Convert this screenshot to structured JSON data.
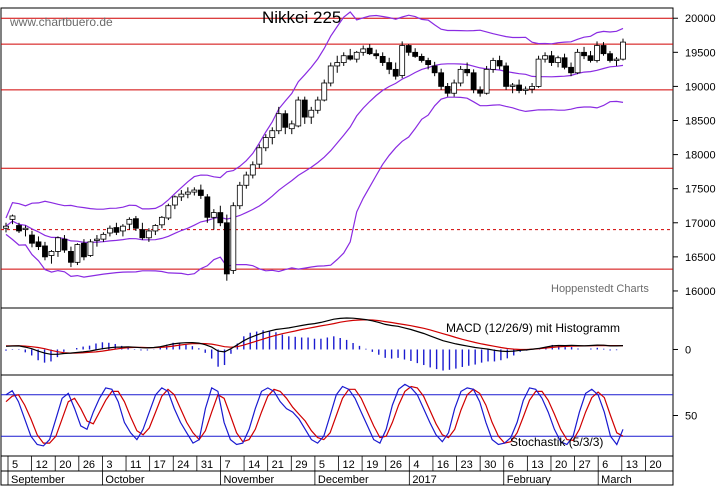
{
  "watermark": "www.chartbuero.de",
  "credit": "Hoppenstedt Charts",
  "colors": {
    "price_line": "#d00000",
    "band": "#8a2be2",
    "macd_hist": "#1a1ad0",
    "signal": "#000000",
    "stoch_k": "#1a1ad0",
    "stoch_d": "#d00000"
  },
  "chart_data": [
    {
      "type": "candlestick",
      "title": "Nikkei 225",
      "y_ticks": [
        16000,
        16500,
        17000,
        17500,
        18000,
        18500,
        19000,
        19500,
        20000
      ],
      "ylim": [
        15750,
        20150
      ],
      "horizontal_lines": [
        20000,
        19620,
        18950,
        17800,
        16900,
        16320
      ],
      "x_ticks": [
        "5",
        "12",
        "20",
        "26",
        "3",
        "11",
        "17",
        "24",
        "31",
        "7",
        "14",
        "21",
        "29",
        "5",
        "12",
        "19",
        "26",
        "4",
        "16",
        "23",
        "30",
        "6",
        "13",
        "20",
        "27",
        "6",
        "13",
        "20"
      ],
      "x_months": [
        "September",
        "October",
        "November",
        "December",
        "2017",
        "February",
        "March"
      ],
      "ohlc": [
        [
          16920,
          17000,
          16860,
          16950
        ],
        [
          17050,
          17120,
          16980,
          17100
        ],
        [
          16960,
          17000,
          16850,
          16880
        ],
        [
          16900,
          16960,
          16800,
          16920
        ],
        [
          16820,
          16880,
          16640,
          16700
        ],
        [
          16720,
          16800,
          16600,
          16650
        ],
        [
          16660,
          16720,
          16450,
          16500
        ],
        [
          16520,
          16600,
          16400,
          16580
        ],
        [
          16580,
          16800,
          16500,
          16780
        ],
        [
          16760,
          16820,
          16560,
          16600
        ],
        [
          16580,
          16650,
          16350,
          16420
        ],
        [
          16420,
          16700,
          16380,
          16680
        ],
        [
          16700,
          16760,
          16450,
          16500
        ],
        [
          16520,
          16760,
          16500,
          16720
        ],
        [
          16740,
          16820,
          16650,
          16760
        ],
        [
          16760,
          16860,
          16720,
          16830
        ],
        [
          16850,
          16960,
          16800,
          16920
        ],
        [
          16930,
          17000,
          16820,
          16860
        ],
        [
          16880,
          16980,
          16800,
          16950
        ],
        [
          16980,
          17080,
          16900,
          17050
        ],
        [
          17060,
          17100,
          16880,
          16920
        ],
        [
          16900,
          17000,
          16750,
          16780
        ],
        [
          16780,
          16920,
          16720,
          16880
        ],
        [
          16880,
          16980,
          16820,
          16960
        ],
        [
          16970,
          17100,
          16920,
          17080
        ],
        [
          17070,
          17280,
          17040,
          17250
        ],
        [
          17260,
          17400,
          17200,
          17380
        ],
        [
          17380,
          17480,
          17320,
          17420
        ],
        [
          17420,
          17520,
          17360,
          17450
        ],
        [
          17450,
          17520,
          17400,
          17480
        ],
        [
          17480,
          17560,
          17350,
          17400
        ],
        [
          17380,
          17420,
          17000,
          17080
        ],
        [
          17080,
          17200,
          16900,
          17150
        ],
        [
          17150,
          17250,
          16950,
          17000
        ],
        [
          17000,
          17120,
          16150,
          16250
        ],
        [
          16300,
          17300,
          16250,
          17250
        ],
        [
          17250,
          17600,
          17200,
          17550
        ],
        [
          17550,
          17750,
          17500,
          17700
        ],
        [
          17700,
          17900,
          17650,
          17850
        ],
        [
          17860,
          18150,
          17800,
          18100
        ],
        [
          18100,
          18300,
          18050,
          18250
        ],
        [
          18250,
          18400,
          18150,
          18350
        ],
        [
          18350,
          18700,
          18300,
          18600
        ],
        [
          18600,
          18650,
          18300,
          18400
        ],
        [
          18380,
          18500,
          18300,
          18450
        ],
        [
          18420,
          18850,
          18400,
          18800
        ],
        [
          18800,
          18850,
          18450,
          18550
        ],
        [
          18550,
          18700,
          18450,
          18650
        ],
        [
          18650,
          18850,
          18600,
          18800
        ],
        [
          18800,
          19100,
          18780,
          19050
        ],
        [
          19050,
          19350,
          19000,
          19300
        ],
        [
          19300,
          19450,
          19200,
          19350
        ],
        [
          19350,
          19500,
          19300,
          19450
        ],
        [
          19450,
          19550,
          19380,
          19400
        ],
        [
          19400,
          19520,
          19350,
          19500
        ],
        [
          19500,
          19600,
          19450,
          19550
        ],
        [
          19560,
          19620,
          19460,
          19480
        ],
        [
          19480,
          19540,
          19400,
          19450
        ],
        [
          19440,
          19500,
          19300,
          19350
        ],
        [
          19350,
          19420,
          19180,
          19250
        ],
        [
          19250,
          19350,
          19100,
          19150
        ],
        [
          19160,
          19660,
          19120,
          19600
        ],
        [
          19600,
          19620,
          19450,
          19500
        ],
        [
          19500,
          19560,
          19420,
          19440
        ],
        [
          19440,
          19480,
          19350,
          19380
        ],
        [
          19380,
          19420,
          19250,
          19320
        ],
        [
          19300,
          19360,
          19150,
          19200
        ],
        [
          19200,
          19260,
          18950,
          19000
        ],
        [
          19000,
          19050,
          18850,
          18900
        ],
        [
          18900,
          19100,
          18850,
          19050
        ],
        [
          19050,
          19300,
          19000,
          19250
        ],
        [
          19250,
          19350,
          19150,
          19200
        ],
        [
          19200,
          19250,
          18900,
          18950
        ],
        [
          18950,
          19000,
          18850,
          18900
        ],
        [
          18900,
          19300,
          18880,
          19250
        ],
        [
          19250,
          19420,
          19200,
          19380
        ],
        [
          19380,
          19450,
          19250,
          19300
        ],
        [
          19300,
          19350,
          18950,
          19000
        ],
        [
          19000,
          19050,
          18900,
          19020
        ],
        [
          19020,
          19100,
          18900,
          18940
        ],
        [
          18940,
          19000,
          18880,
          18960
        ],
        [
          18960,
          19050,
          18900,
          19000
        ],
        [
          19000,
          19450,
          18980,
          19400
        ],
        [
          19400,
          19500,
          19350,
          19450
        ],
        [
          19450,
          19520,
          19300,
          19350
        ],
        [
          19350,
          19450,
          19280,
          19420
        ],
        [
          19420,
          19480,
          19250,
          19280
        ],
        [
          19280,
          19350,
          19150,
          19200
        ],
        [
          19200,
          19550,
          19180,
          19500
        ],
        [
          19500,
          19580,
          19400,
          19450
        ],
        [
          19450,
          19520,
          19350,
          19380
        ],
        [
          19380,
          19660,
          19350,
          19600
        ],
        [
          19600,
          19650,
          19450,
          19480
        ],
        [
          19480,
          19520,
          19350,
          19380
        ],
        [
          19380,
          19430,
          19300,
          19400
        ],
        [
          19400,
          19700,
          19380,
          19650
        ]
      ]
    },
    {
      "type": "line",
      "title": "MACD (12/26/9) mit Histogramm",
      "y_ticks": [
        0
      ],
      "ylim": [
        -320,
        520
      ],
      "series": [
        {
          "values": [
            40,
            44,
            45,
            30,
            10,
            -20,
            -45,
            -60,
            -60,
            -50,
            -45,
            -38,
            -30,
            -20,
            -5,
            10,
            20,
            28,
            30,
            32,
            28,
            22,
            20,
            25,
            35,
            52,
            70,
            80,
            85,
            86,
            80,
            60,
            30,
            -20,
            -30,
            10,
            60,
            110,
            150,
            180,
            210,
            230,
            250,
            260,
            270,
            285,
            300,
            315,
            325,
            340,
            360,
            380,
            390,
            395,
            392,
            385,
            375,
            360,
            340,
            315,
            300,
            290,
            270,
            250,
            225,
            200,
            170,
            140,
            110,
            90,
            70,
            55,
            40,
            25,
            15,
            5,
            -10,
            -20,
            -25,
            -20,
            -10,
            -5,
            5,
            15,
            30,
            45,
            50,
            48,
            52,
            48,
            45,
            50,
            55,
            53,
            45,
            45,
            48
          ]
        },
        {
          "values": [
            45,
            46,
            47,
            42,
            35,
            25,
            10,
            -10,
            -28,
            -40,
            -45,
            -44,
            -42,
            -36,
            -30,
            -20,
            -8,
            5,
            15,
            22,
            26,
            26,
            24,
            24,
            26,
            32,
            42,
            55,
            65,
            72,
            75,
            74,
            68,
            52,
            35,
            28,
            35,
            55,
            80,
            105,
            130,
            155,
            178,
            198,
            215,
            232,
            250,
            265,
            280,
            295,
            310,
            325,
            342,
            355,
            365,
            370,
            372,
            370,
            362,
            350,
            338,
            325,
            312,
            298,
            282,
            265,
            245,
            222,
            198,
            175,
            150,
            128,
            108,
            88,
            70,
            55,
            40,
            25,
            12,
            5,
            0,
            0,
            5,
            10,
            18,
            26,
            34,
            38,
            42,
            44,
            45,
            46,
            48,
            50,
            49,
            48,
            48
          ]
        }
      ]
    },
    {
      "type": "line",
      "title": "Stochastik (5/3/3)",
      "y_ticks": [
        50
      ],
      "ylim": [
        0,
        100
      ],
      "series": [
        {
          "values": [
            80,
            86,
            70,
            45,
            20,
            8,
            6,
            15,
            45,
            75,
            82,
            60,
            35,
            30,
            55,
            75,
            90,
            88,
            70,
            40,
            25,
            15,
            30,
            55,
            80,
            90,
            85,
            60,
            40,
            25,
            10,
            15,
            60,
            90,
            85,
            40,
            15,
            8,
            10,
            30,
            60,
            85,
            90,
            85,
            70,
            60,
            55,
            45,
            30,
            15,
            10,
            20,
            50,
            80,
            92,
            88,
            75,
            55,
            35,
            15,
            10,
            30,
            65,
            88,
            95,
            90,
            80,
            60,
            40,
            22,
            12,
            25,
            60,
            85,
            90,
            88,
            70,
            40,
            15,
            8,
            10,
            18,
            40,
            72,
            90,
            88,
            75,
            55,
            30,
            12,
            8,
            20,
            55,
            82,
            88,
            80,
            55,
            20,
            8,
            30
          ]
        },
        {
          "values": [
            70,
            78,
            80,
            65,
            45,
            22,
            10,
            10,
            20,
            45,
            70,
            75,
            60,
            42,
            38,
            55,
            72,
            85,
            85,
            70,
            48,
            28,
            22,
            32,
            55,
            78,
            88,
            80,
            60,
            40,
            25,
            15,
            28,
            55,
            80,
            75,
            50,
            25,
            12,
            15,
            30,
            55,
            78,
            88,
            85,
            75,
            62,
            52,
            42,
            28,
            18,
            15,
            25,
            50,
            75,
            88,
            88,
            75,
            55,
            35,
            18,
            20,
            40,
            65,
            85,
            92,
            90,
            78,
            58,
            38,
            22,
            18,
            30,
            58,
            80,
            88,
            82,
            65,
            40,
            20,
            10,
            12,
            25,
            48,
            72,
            85,
            85,
            72,
            52,
            30,
            15,
            14,
            30,
            55,
            76,
            84,
            76,
            50,
            25,
            20
          ]
        }
      ]
    }
  ]
}
